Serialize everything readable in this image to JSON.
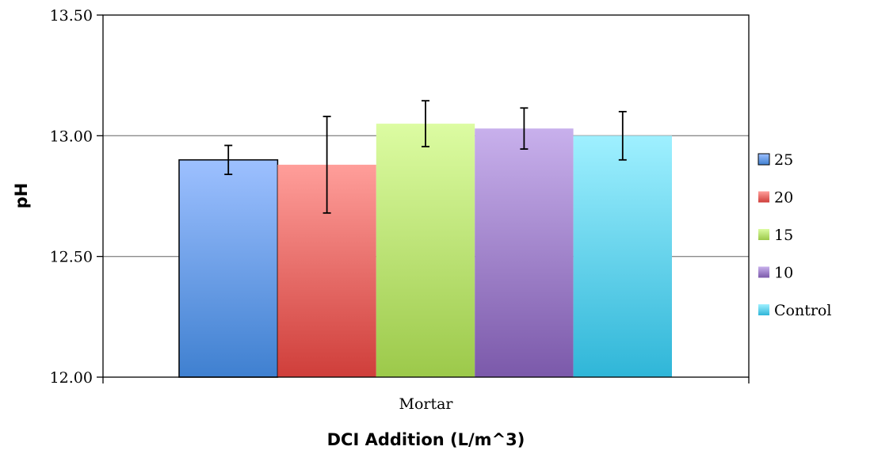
{
  "chart_data": {
    "type": "bar",
    "categories": [
      "Mortar"
    ],
    "xlabel": "DCI Addition (L/m^3)",
    "ylabel": "pH",
    "ylim": [
      12.0,
      13.5
    ],
    "yticks": [
      "12.00",
      "12.50",
      "13.00",
      "13.50"
    ],
    "grid": true,
    "legend_position": "right",
    "series": [
      {
        "name": "25",
        "values": [
          12.9
        ],
        "error": [
          0.06
        ],
        "color_top": "#9dc0ff",
        "color_bottom": "#3f80d0"
      },
      {
        "name": "20",
        "values": [
          12.88
        ],
        "error": [
          0.2
        ],
        "color_top": "#ff9e9a",
        "color_bottom": "#cf3e3a"
      },
      {
        "name": "15",
        "values": [
          13.05
        ],
        "error": [
          0.095
        ],
        "color_top": "#dcfca2",
        "color_bottom": "#9cc94a"
      },
      {
        "name": "10",
        "values": [
          13.03
        ],
        "error": [
          0.085
        ],
        "color_top": "#c8b0ec",
        "color_bottom": "#7b59aa"
      },
      {
        "name": "Control",
        "values": [
          13.0
        ],
        "error": [
          0.1
        ],
        "color_top": "#9ff0ff",
        "color_bottom": "#2fb6d8"
      }
    ]
  }
}
